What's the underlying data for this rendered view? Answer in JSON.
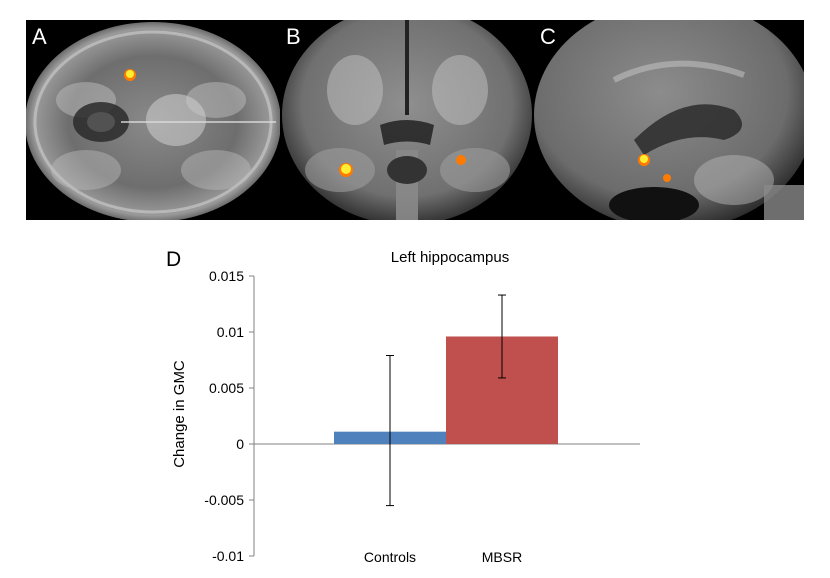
{
  "panels": {
    "a": {
      "label": "A"
    },
    "b": {
      "label": "B"
    },
    "c": {
      "label": "C"
    },
    "d": {
      "label": "D"
    }
  },
  "colors": {
    "controls": "#4f81bd",
    "mbsr": "#c0504d",
    "activation_core": "#ffee33",
    "activation_edge": "#ff7a00"
  },
  "chart_data": {
    "type": "bar",
    "title": "Left hippocampus",
    "ylabel": "Change in GMC",
    "xlabel": "",
    "categories": [
      "Controls",
      "MBSR"
    ],
    "values": [
      0.0011,
      0.0096
    ],
    "error_low": [
      -0.0055,
      0.0059
    ],
    "error_high": [
      0.0079,
      0.0133
    ],
    "ylim": [
      -0.01,
      0.015
    ],
    "yticks": [
      "0.015",
      "0.01",
      "0.005",
      "0",
      "-0.005",
      "-0.01"
    ],
    "ytick_values": [
      0.015,
      0.01,
      0.005,
      0,
      -0.005,
      -0.01
    ],
    "grid": false,
    "legend": "none"
  }
}
